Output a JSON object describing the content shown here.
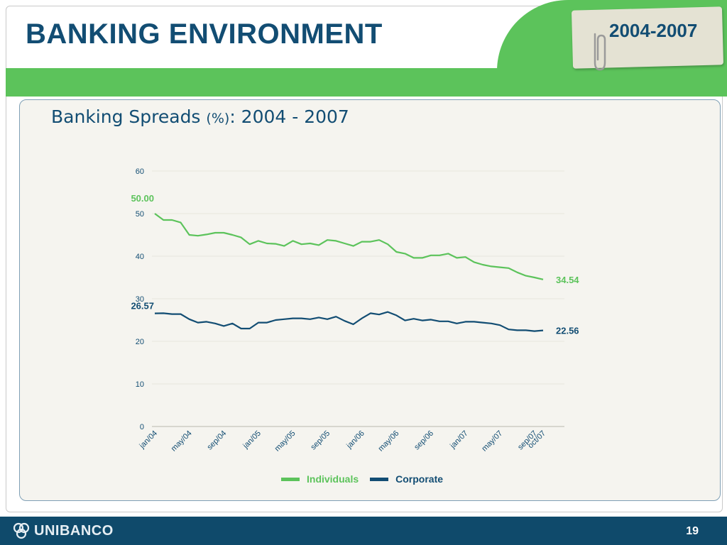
{
  "slide": {
    "title": "BANKING ENVIRONMENT",
    "period": "2004-2007",
    "page_number": "19",
    "brand": "UNIBANCO"
  },
  "chart_title": {
    "main": "Banking Spreads ",
    "unit": "(%)",
    "range": ": 2004 - 2007"
  },
  "colors": {
    "individuals": "#5cc35b",
    "corporate": "#124d73",
    "title": "#124d73",
    "footer": "#0f4a6b"
  },
  "chart_data": {
    "type": "line",
    "title": "Banking Spreads (%): 2004 - 2007",
    "x": [
      "jan/04",
      "feb/04",
      "mar/04",
      "apr/04",
      "may/04",
      "jun/04",
      "jul/04",
      "aug/04",
      "sep/04",
      "oct/04",
      "nov/04",
      "dec/04",
      "jan/05",
      "feb/05",
      "mar/05",
      "apr/05",
      "may/05",
      "jun/05",
      "jul/05",
      "aug/05",
      "sep/05",
      "oct/05",
      "nov/05",
      "dec/05",
      "jan/06",
      "feb/06",
      "mar/06",
      "apr/06",
      "may/06",
      "jun/06",
      "jul/06",
      "aug/06",
      "sep/06",
      "oct/06",
      "nov/06",
      "dec/06",
      "jan/07",
      "feb/07",
      "mar/07",
      "apr/07",
      "may/07",
      "jun/07",
      "jul/07",
      "aug/07",
      "sep/07",
      "oct/07"
    ],
    "x_tick_labels": [
      "jan/04",
      "may/04",
      "sep/04",
      "jan/05",
      "may/05",
      "sep/05",
      "jan/06",
      "may/06",
      "sep/06",
      "jan/07",
      "may/07",
      "sep/07",
      "oct/07"
    ],
    "ylim": [
      0,
      60
    ],
    "yticks": [
      "0",
      "10",
      "20",
      "30",
      "40",
      "50",
      "60"
    ],
    "series": [
      {
        "name": "Individuals",
        "color": "#5cc35b",
        "values": [
          50.0,
          48.5,
          48.5,
          47.9,
          45.0,
          44.8,
          45.1,
          45.5,
          45.5,
          45.0,
          44.4,
          42.8,
          43.6,
          43.0,
          42.9,
          42.4,
          43.6,
          42.8,
          43.0,
          42.6,
          43.8,
          43.6,
          43.0,
          42.4,
          43.4,
          43.4,
          43.8,
          42.8,
          41.0,
          40.6,
          39.6,
          39.6,
          40.2,
          40.2,
          40.6,
          39.6,
          39.8,
          38.6,
          38.0,
          37.6,
          37.4,
          37.2,
          36.2,
          35.4,
          35.0,
          34.54
        ],
        "start_label": "50.00",
        "end_label": "34.54"
      },
      {
        "name": "Corporate",
        "color": "#124d73",
        "values": [
          26.57,
          26.6,
          26.4,
          26.4,
          25.2,
          24.4,
          24.6,
          24.2,
          23.6,
          24.2,
          23.0,
          23.0,
          24.4,
          24.4,
          25.0,
          25.2,
          25.4,
          25.4,
          25.2,
          25.6,
          25.2,
          25.8,
          24.8,
          24.0,
          25.4,
          26.6,
          26.3,
          26.9,
          26.1,
          24.9,
          25.3,
          24.9,
          25.1,
          24.7,
          24.7,
          24.2,
          24.6,
          24.6,
          24.4,
          24.2,
          23.8,
          22.8,
          22.6,
          22.6,
          22.4,
          22.56
        ],
        "start_label": "26.57",
        "end_label": "22.56"
      }
    ],
    "legend": "bottom-center",
    "grid": true
  }
}
